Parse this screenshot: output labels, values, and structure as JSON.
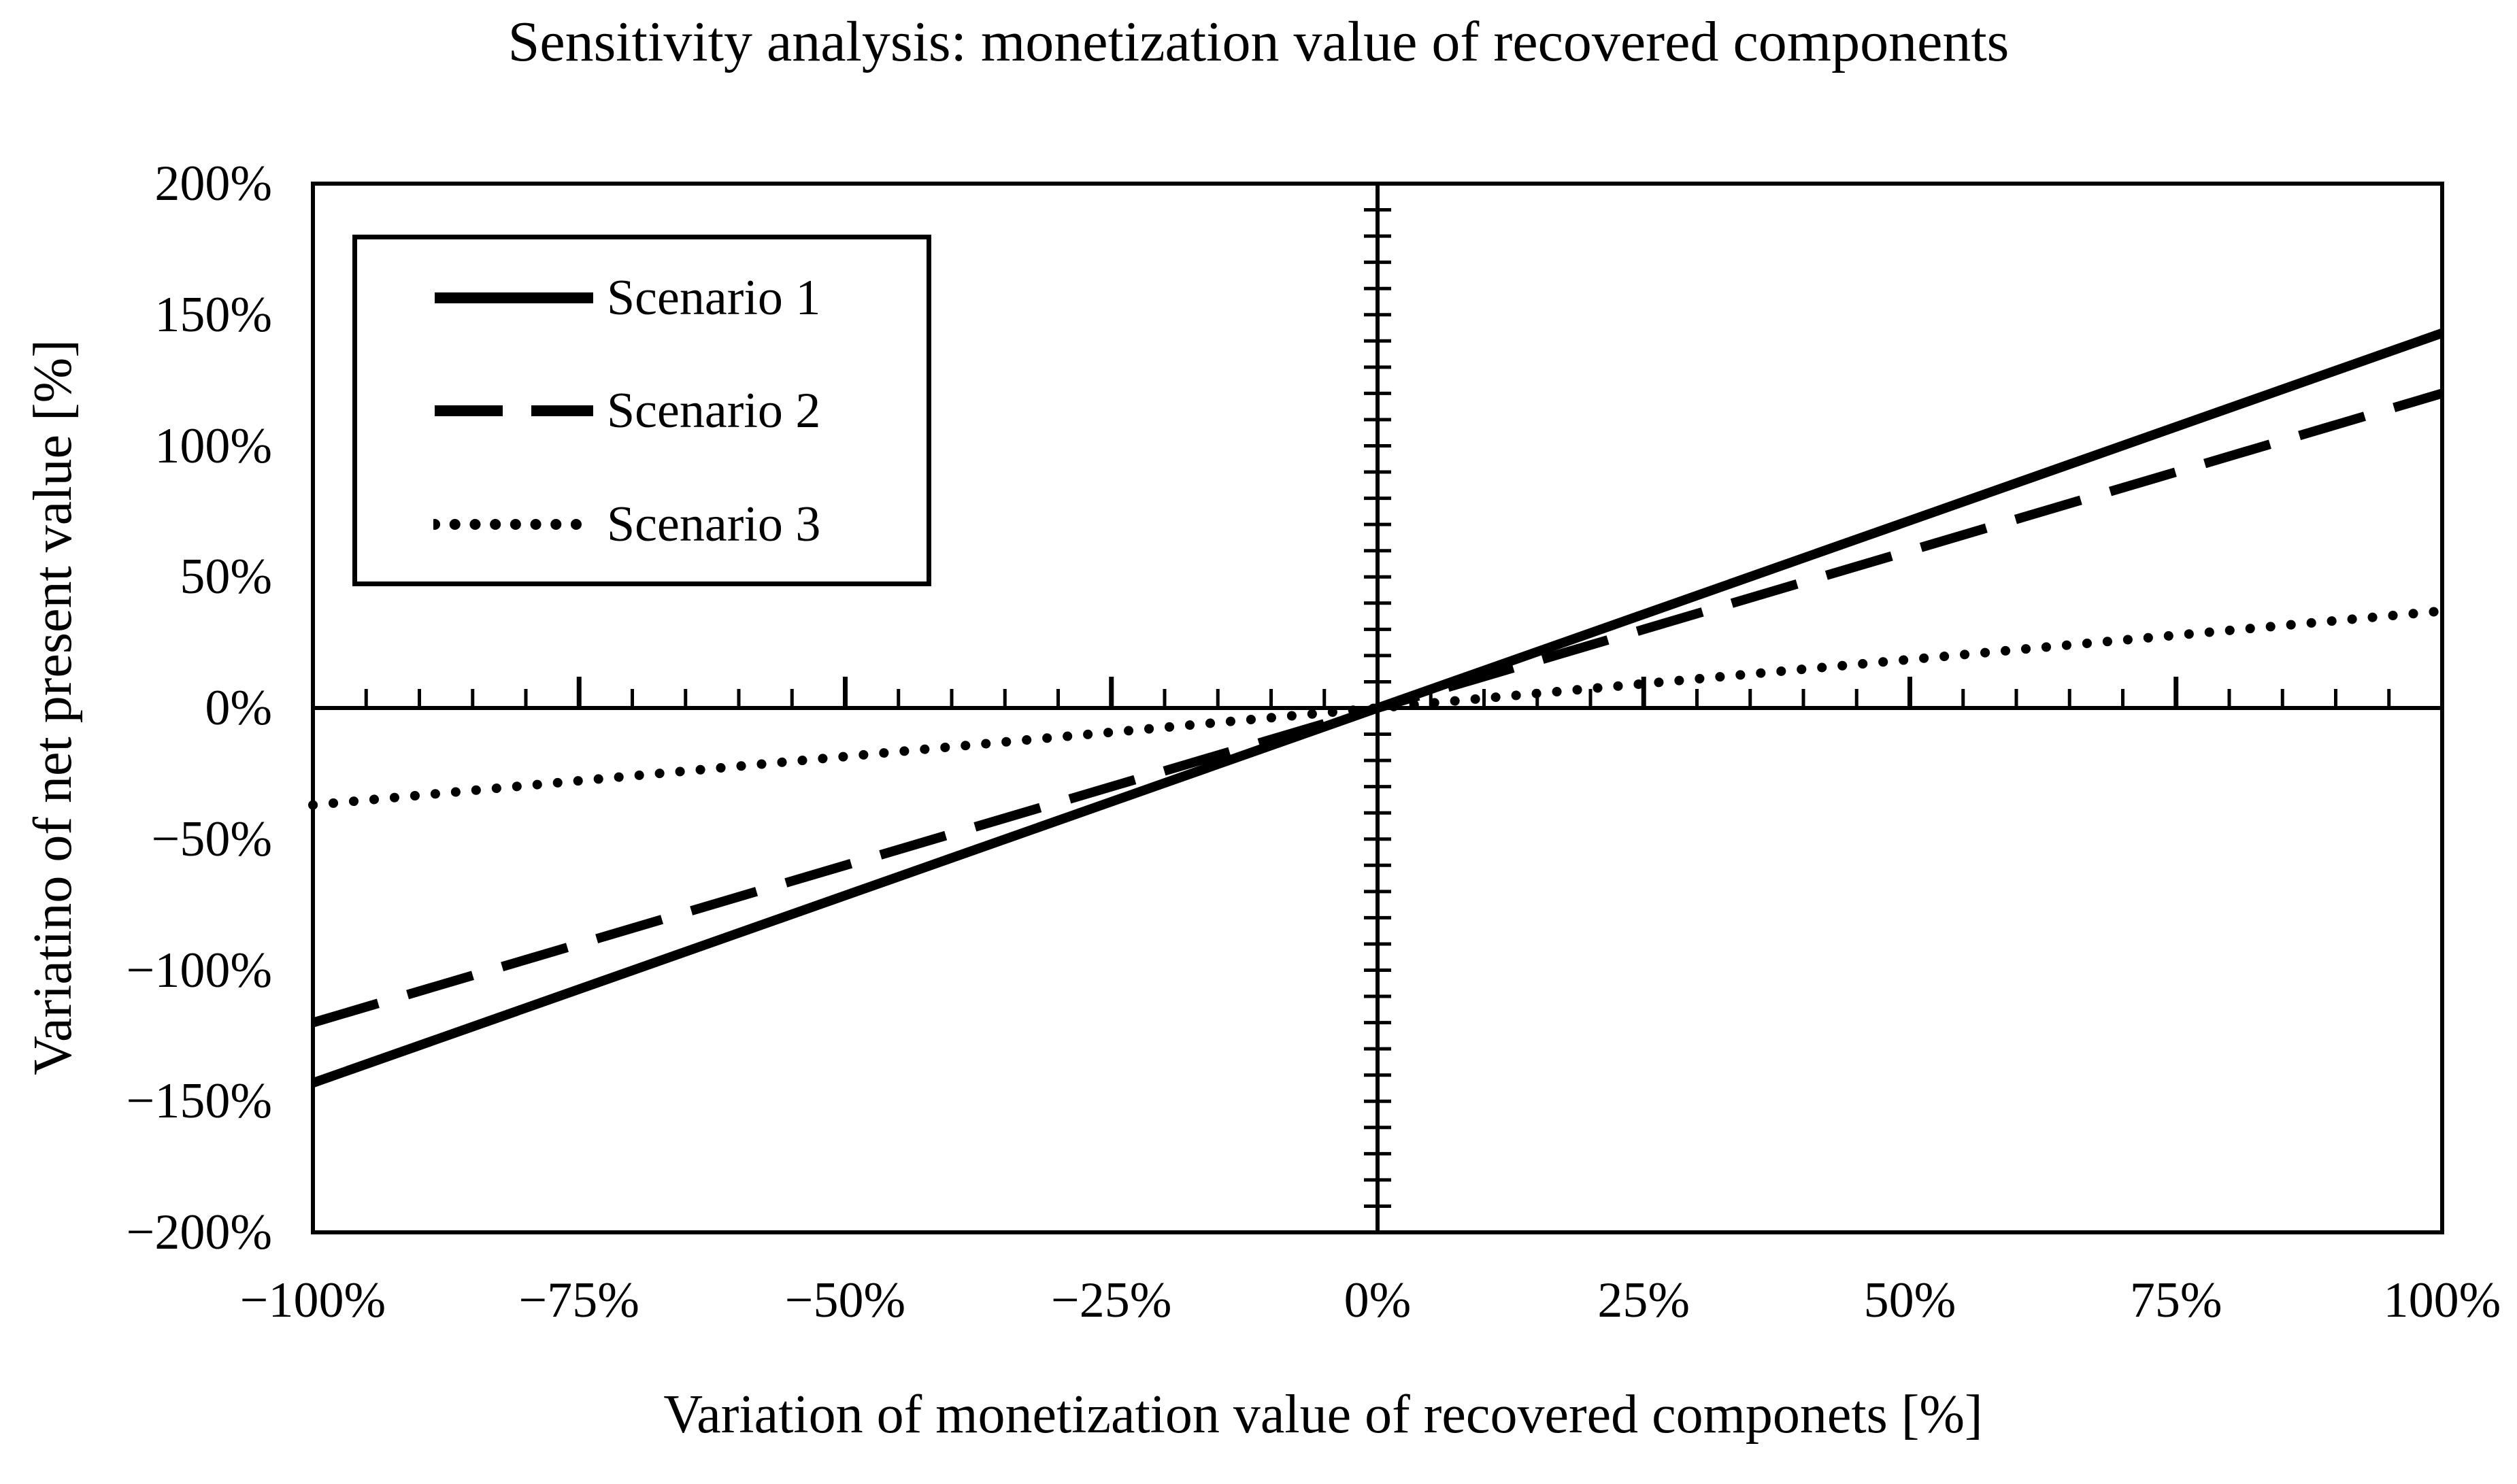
{
  "page": {
    "background_color": "#ffffff",
    "foreground_color": "#000000"
  },
  "chart_data": {
    "type": "line",
    "title": "Sensitivity analysis: monetization value of recovered components",
    "xlabel": "Variation of monetization value of recovered componets [%]",
    "ylabel": "Variatino of net present value [%]",
    "xlim": [
      -100,
      100
    ],
    "ylim": [
      -200,
      200
    ],
    "grid": false,
    "x": [
      -100,
      0,
      100
    ],
    "series": [
      {
        "name": "Scenario 1",
        "line_style": "solid",
        "color": "#000000",
        "values": [
          -143,
          0,
          143
        ]
      },
      {
        "name": "Scenario 2",
        "line_style": "dashed",
        "color": "#000000",
        "values": [
          -120,
          0,
          120
        ]
      },
      {
        "name": "Scenario 3",
        "line_style": "dotted",
        "color": "#000000",
        "values": [
          -37,
          0,
          37
        ]
      }
    ],
    "x_ticks": {
      "values": [
        -100,
        -75,
        -50,
        -25,
        0,
        25,
        50,
        75,
        100
      ],
      "labels": [
        "−100%",
        "−75%",
        "−50%",
        "−25%",
        "0%",
        "25%",
        "50%",
        "75%",
        "100%"
      ],
      "minor_step_pct": 5,
      "major_step_pct": 25
    },
    "y_ticks": {
      "values": [
        200,
        150,
        100,
        50,
        0,
        -50,
        -100,
        -150,
        -200
      ],
      "labels": [
        "200%",
        "150%",
        "100%",
        "50%",
        "0%",
        "−50%",
        "−100%",
        "−150%",
        "−200%"
      ],
      "minor_step_pct": 10,
      "major_step_pct": 50
    },
    "legend": {
      "position": "upper-left-inside",
      "entries": [
        "Scenario 1",
        "Scenario 2",
        "Scenario 3"
      ]
    }
  }
}
